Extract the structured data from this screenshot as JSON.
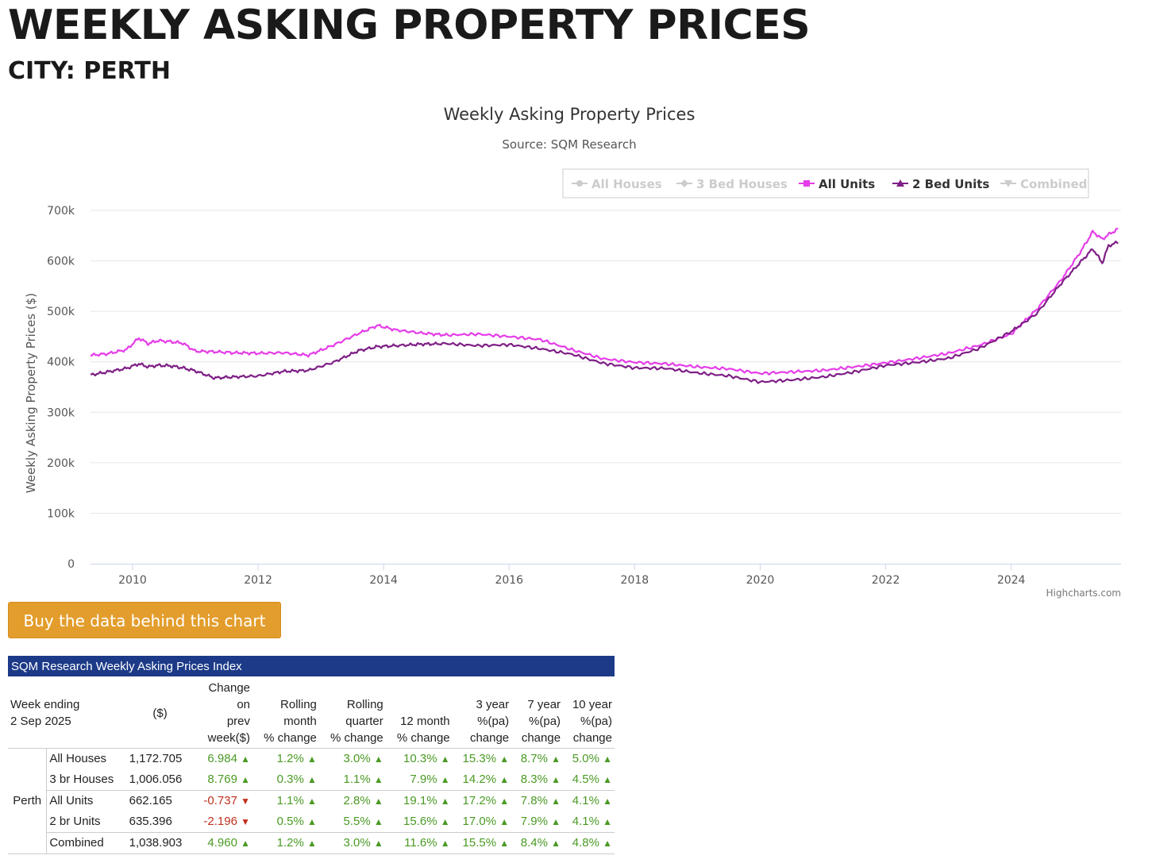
{
  "page": {
    "title": "WEEKLY ASKING PROPERTY PRICES",
    "city_label": "CITY: PERTH"
  },
  "buy_button_label": "Buy the data behind this chart",
  "chart_data": {
    "type": "line",
    "title": "Weekly Asking Property Prices",
    "subtitle": "Source: SQM Research",
    "xlabel": "",
    "ylabel": "Weekly Asking Property Prices ($)",
    "credit": "Highcharts.com",
    "ylim": [
      0,
      700000
    ],
    "xlim": [
      2009.33,
      2025.75
    ],
    "yticks": [
      0,
      100000,
      200000,
      300000,
      400000,
      500000,
      600000,
      700000
    ],
    "ytick_labels": [
      "0",
      "100k",
      "200k",
      "300k",
      "400k",
      "500k",
      "600k",
      "700k"
    ],
    "xticks": [
      2010,
      2012,
      2014,
      2016,
      2018,
      2020,
      2022,
      2024
    ],
    "xtick_labels": [
      "2010",
      "2012",
      "2014",
      "2016",
      "2018",
      "2020",
      "2022",
      "2024"
    ],
    "grid": true,
    "legend_position": "top-right",
    "legend": [
      {
        "name": "All Houses",
        "visible": false,
        "color": "#cccccc",
        "marker": "circle"
      },
      {
        "name": "3 Bed Houses",
        "visible": false,
        "color": "#cccccc",
        "marker": "diamond"
      },
      {
        "name": "All Units",
        "visible": true,
        "color": "#e53de8",
        "marker": "square"
      },
      {
        "name": "2 Bed Units",
        "visible": true,
        "color": "#7e1f86",
        "marker": "triangle"
      },
      {
        "name": "Combined",
        "visible": false,
        "color": "#cccccc",
        "marker": "triangle-down"
      }
    ],
    "series": [
      {
        "name": "All Units",
        "color": "#e53de8",
        "x": [
          2009.33,
          2009.6,
          2009.9,
          2010.1,
          2010.25,
          2010.4,
          2010.6,
          2010.8,
          2011.0,
          2011.3,
          2011.6,
          2012.0,
          2012.4,
          2012.8,
          2013.2,
          2013.6,
          2013.9,
          2014.2,
          2014.6,
          2015.0,
          2015.5,
          2016.0,
          2016.5,
          2017.0,
          2017.5,
          2018.0,
          2018.5,
          2019.0,
          2019.5,
          2020.0,
          2020.5,
          2021.0,
          2021.5,
          2022.0,
          2022.5,
          2023.0,
          2023.5,
          2024.0,
          2024.4,
          2024.8,
          2025.1,
          2025.3,
          2025.45,
          2025.55,
          2025.7
        ],
        "values": [
          413000,
          416000,
          424000,
          447000,
          436000,
          442000,
          440000,
          437000,
          421000,
          420000,
          418000,
          417000,
          418000,
          413000,
          433000,
          456000,
          472000,
          463000,
          457000,
          453000,
          455000,
          450000,
          444000,
          424000,
          406000,
          399000,
          396000,
          390000,
          386000,
          377000,
          380000,
          383000,
          390000,
          398000,
          407000,
          417000,
          433000,
          455000,
          503000,
          563000,
          617000,
          658000,
          643000,
          652000,
          663000
        ]
      },
      {
        "name": "2 Bed Units",
        "color": "#7e1f86",
        "x": [
          2009.33,
          2009.6,
          2009.9,
          2010.1,
          2010.25,
          2010.4,
          2010.6,
          2010.8,
          2011.0,
          2011.3,
          2011.6,
          2012.0,
          2012.4,
          2012.8,
          2013.2,
          2013.6,
          2013.9,
          2014.2,
          2014.6,
          2015.0,
          2015.5,
          2016.0,
          2016.5,
          2017.0,
          2017.5,
          2018.0,
          2018.5,
          2019.0,
          2019.5,
          2020.0,
          2020.5,
          2021.0,
          2021.5,
          2022.0,
          2022.5,
          2023.0,
          2023.5,
          2024.0,
          2024.4,
          2024.8,
          2025.1,
          2025.3,
          2025.45,
          2025.55,
          2025.7
        ],
        "values": [
          374000,
          380000,
          387000,
          396000,
          390000,
          393000,
          392000,
          388000,
          382000,
          368000,
          370000,
          372000,
          381000,
          383000,
          399000,
          422000,
          430000,
          432000,
          435000,
          436000,
          432000,
          434000,
          426000,
          415000,
          397000,
          388000,
          387000,
          378000,
          372000,
          360000,
          364000,
          370000,
          380000,
          393000,
          399000,
          407000,
          427000,
          460000,
          495000,
          556000,
          597000,
          624000,
          596000,
          630000,
          637000
        ]
      }
    ]
  },
  "table": {
    "caption": "SQM Research Weekly Asking Prices Index",
    "week_label": "Week ending",
    "week_date": "2 Sep 2025",
    "headers": {
      "price": "($)",
      "change_prev": [
        "Change",
        "on",
        "prev",
        "week($)"
      ],
      "rolling_month": [
        "Rolling",
        "month",
        "% change"
      ],
      "rolling_quarter": [
        "Rolling",
        "quarter",
        "% change"
      ],
      "twelve_month": [
        "12 month",
        "% change"
      ],
      "three_year": [
        "3 year",
        "%(pa)",
        "change"
      ],
      "seven_year": [
        "7 year",
        "%(pa)",
        "change"
      ],
      "ten_year": [
        "10 year",
        "%(pa)",
        "change"
      ]
    },
    "city": "Perth",
    "rows": [
      {
        "label": "All Houses",
        "price": "1,172.705",
        "change": "6.984",
        "change_dir": "up",
        "month": "1.2%",
        "quarter": "3.0%",
        "twelve": "10.3%",
        "three": "15.3%",
        "seven": "8.7%",
        "ten": "5.0%"
      },
      {
        "label": "3 br Houses",
        "price": "1,006.056",
        "change": "8.769",
        "change_dir": "up",
        "month": "0.3%",
        "quarter": "1.1%",
        "twelve": "7.9%",
        "three": "14.2%",
        "seven": "8.3%",
        "ten": "4.5%"
      },
      {
        "label": "All Units",
        "price": "662.165",
        "change": "-0.737",
        "change_dir": "down",
        "month": "1.1%",
        "quarter": "2.8%",
        "twelve": "19.1%",
        "three": "17.2%",
        "seven": "7.8%",
        "ten": "4.1%"
      },
      {
        "label": "2 br Units",
        "price": "635.396",
        "change": "-2.196",
        "change_dir": "down",
        "month": "0.5%",
        "quarter": "5.5%",
        "twelve": "15.6%",
        "three": "17.0%",
        "seven": "7.9%",
        "ten": "4.1%"
      },
      {
        "label": "Combined",
        "price": "1,038.903",
        "change": "4.960",
        "change_dir": "up",
        "month": "1.2%",
        "quarter": "3.0%",
        "twelve": "11.6%",
        "three": "15.5%",
        "seven": "8.4%",
        "ten": "4.8%"
      }
    ]
  }
}
